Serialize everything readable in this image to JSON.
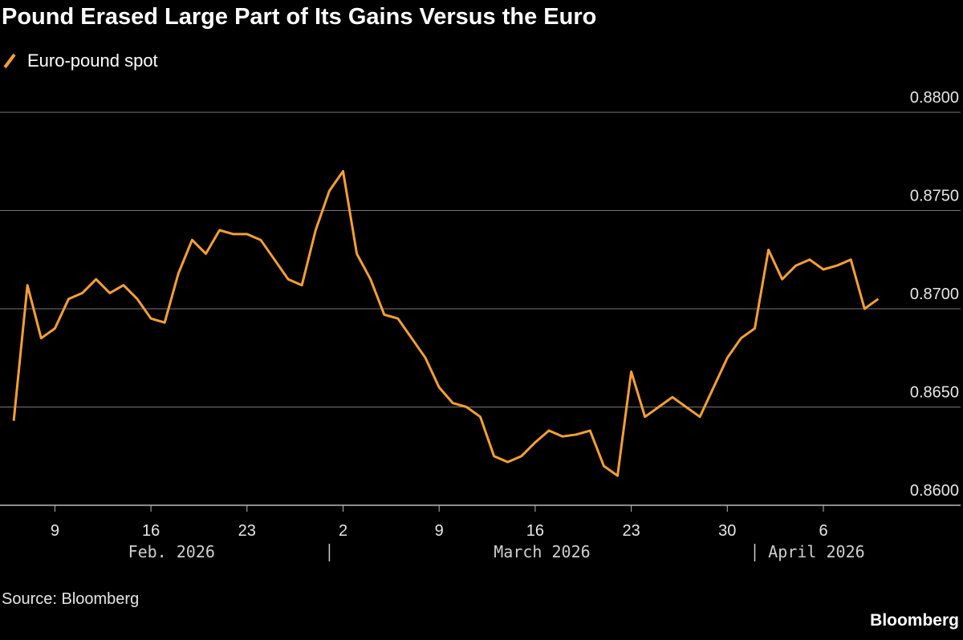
{
  "chart_data": {
    "type": "line",
    "title": "Pound Erased Large Part of Its Gains Versus the Euro",
    "source": "Source: Bloomberg",
    "brand": "Bloomberg",
    "grid": true,
    "x": [
      "2026-02-06",
      "2026-02-07",
      "2026-02-08",
      "2026-02-09",
      "2026-02-10",
      "2026-02-11",
      "2026-02-12",
      "2026-02-13",
      "2026-02-14",
      "2026-02-15",
      "2026-02-16",
      "2026-02-17",
      "2026-02-18",
      "2026-02-19",
      "2026-02-20",
      "2026-02-21",
      "2026-02-22",
      "2026-02-23",
      "2026-02-24",
      "2026-02-25",
      "2026-02-26",
      "2026-02-27",
      "2026-02-28",
      "2026-03-01",
      "2026-03-02",
      "2026-03-03",
      "2026-03-04",
      "2026-03-05",
      "2026-03-06",
      "2026-03-07",
      "2026-03-08",
      "2026-03-09",
      "2026-03-10",
      "2026-03-11",
      "2026-03-12",
      "2026-03-13",
      "2026-03-14",
      "2026-03-15",
      "2026-03-16",
      "2026-03-17",
      "2026-03-18",
      "2026-03-19",
      "2026-03-20",
      "2026-03-21",
      "2026-03-22",
      "2026-03-23",
      "2026-03-24",
      "2026-03-25",
      "2026-03-26",
      "2026-03-27",
      "2026-03-28",
      "2026-03-29",
      "2026-03-30",
      "2026-03-31",
      "2026-04-01",
      "2026-04-02",
      "2026-04-03",
      "2026-04-04",
      "2026-04-05",
      "2026-04-06",
      "2026-04-07",
      "2026-04-08",
      "2026-04-09",
      "2026-04-10"
    ],
    "series": [
      {
        "name": "Euro-pound spot",
        "color": "#f5a033",
        "values": [
          0.8643,
          0.8712,
          0.8685,
          0.869,
          0.8705,
          0.8708,
          0.8715,
          0.8708,
          0.8712,
          0.8705,
          0.8695,
          0.8693,
          0.8718,
          0.8735,
          0.8728,
          0.874,
          0.8738,
          0.8738,
          0.8735,
          0.8725,
          0.8715,
          0.8712,
          0.874,
          0.876,
          0.877,
          0.8728,
          0.8715,
          0.8697,
          0.8695,
          0.8685,
          0.8675,
          0.866,
          0.8652,
          0.865,
          0.8645,
          0.8625,
          0.8622,
          0.8625,
          0.8632,
          0.8638,
          0.8635,
          0.8636,
          0.8638,
          0.862,
          0.8615,
          0.8668,
          0.8645,
          0.865,
          0.8655,
          0.865,
          0.8645,
          0.866,
          0.8675,
          0.8685,
          0.869,
          0.873,
          0.8715,
          0.8722,
          0.8725,
          0.872,
          0.8722,
          0.8725,
          0.87,
          0.8705
        ]
      }
    ],
    "xlim": [
      "2026-02-05",
      "2026-04-16"
    ],
    "xticks": [
      {
        "value": "2026-02-09",
        "label": "9"
      },
      {
        "value": "2026-02-16",
        "label": "16"
      },
      {
        "value": "2026-02-23",
        "label": "23"
      },
      {
        "value": "2026-03-02",
        "label": "2"
      },
      {
        "value": "2026-03-09",
        "label": "9"
      },
      {
        "value": "2026-03-16",
        "label": "16"
      },
      {
        "value": "2026-03-23",
        "label": "23"
      },
      {
        "value": "2026-03-30",
        "label": "30"
      },
      {
        "value": "2026-04-06",
        "label": "6"
      }
    ],
    "month_labels": [
      {
        "value": "2026-02",
        "label": "Feb. 2026"
      },
      {
        "value": "2026-03",
        "label": "March 2026"
      },
      {
        "value": "2026-04",
        "label": "April 2026"
      }
    ],
    "ylim": [
      0.86,
      0.88
    ],
    "yticks": [
      {
        "value": 0.86,
        "label": "0.8600"
      },
      {
        "value": 0.865,
        "label": "0.8650"
      },
      {
        "value": 0.87,
        "label": "0.8700"
      },
      {
        "value": 0.875,
        "label": "0.8750"
      },
      {
        "value": 0.88,
        "label": "0.8800"
      }
    ]
  }
}
